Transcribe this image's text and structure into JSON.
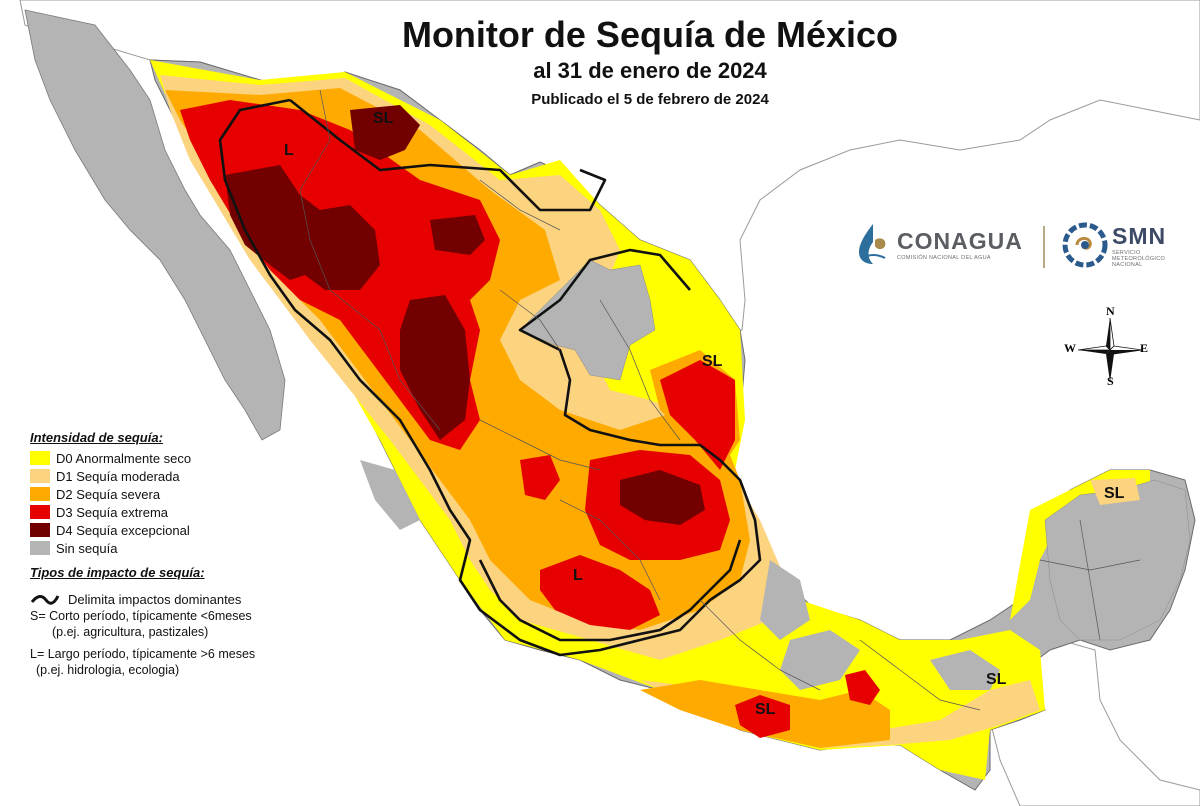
{
  "header": {
    "title": "Monitor de Sequía de México",
    "subtitle": "al 31 de enero de 2024",
    "published": "Publicado el 5 de febrero de 2024"
  },
  "logos": {
    "conagua": {
      "name": "CONAGUA",
      "tagline": "COMISIÓN NACIONAL DEL AGUA"
    },
    "smn": {
      "name": "SMN",
      "tagline_line1": "SERVICIO",
      "tagline_line2": "METEOROLÓGICO",
      "tagline_line3": "NACIONAL"
    }
  },
  "compass": {
    "n": "N",
    "s": "S",
    "e": "E",
    "w": "W"
  },
  "legend": {
    "intensity_title": "Intensidad de sequía:",
    "levels": [
      {
        "label": "D0 Anormalmente seco",
        "color": "#ffff00"
      },
      {
        "label": "D1 Sequía moderada",
        "color": "#fcd37f"
      },
      {
        "label": "D2 Sequía severa",
        "color": "#ffaa00"
      },
      {
        "label": "D3 Sequía extrema",
        "color": "#e60000"
      },
      {
        "label": "D4 Sequía excepcional",
        "color": "#730000"
      },
      {
        "label": "Sin sequía",
        "color": "#b4b4b4"
      }
    ],
    "impact_title": "Tipos de impacto de sequía:",
    "boundary": "Delimita impactos dominantes",
    "short_line1": "S= Corto período, típicamente <6meses",
    "short_line2": "(p.ej. agricultura, pastizales)",
    "long_line1": "L= Largo período, típicamente >6 meses",
    "long_line2": "(p.ej. hidrologia, ecologia)"
  },
  "map_labels": {
    "nw_sl": "SL",
    "nw_l": "L",
    "ne_sl": "SL",
    "center_l": "L",
    "south_sl": "SL",
    "se_sl": "SL",
    "yuc_sl": "SL"
  },
  "colors": {
    "water": "#ffffff",
    "neighbor": "#ffffff",
    "no_drought": "#b4b4b4",
    "d0": "#ffff00",
    "d1": "#fcd37f",
    "d2": "#ffaa00",
    "d3": "#e60000",
    "d4": "#730000"
  }
}
